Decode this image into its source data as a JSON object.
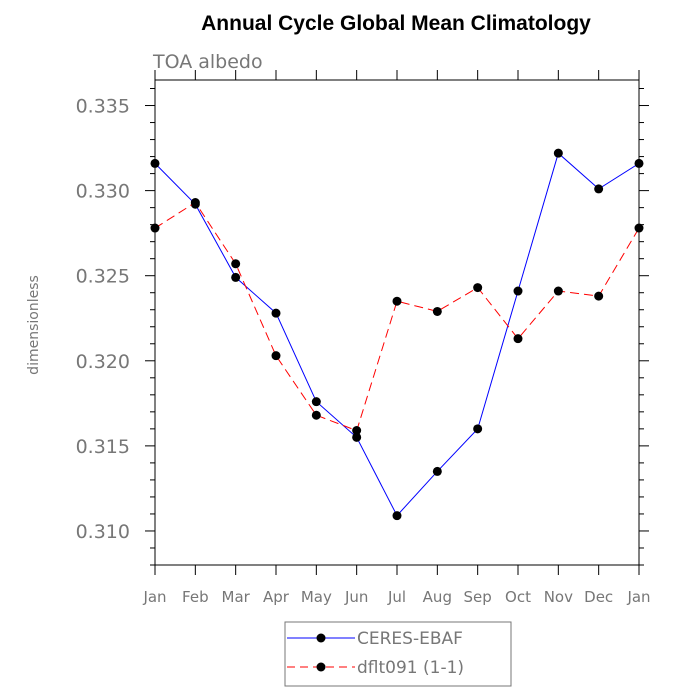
{
  "chart_data": {
    "type": "line",
    "title": "Annual Cycle Global Mean Climatology",
    "subtitle": "TOA albedo",
    "xlabel": "",
    "ylabel": "dimensionless",
    "categories": [
      "Jan",
      "Feb",
      "Mar",
      "Apr",
      "May",
      "Jun",
      "Jul",
      "Aug",
      "Sep",
      "Oct",
      "Nov",
      "Dec",
      "Jan"
    ],
    "ylim": [
      0.308,
      0.3365
    ],
    "yticks": [
      "0.310",
      "0.315",
      "0.320",
      "0.325",
      "0.330",
      "0.335"
    ],
    "series": [
      {
        "name": "CERES-EBAF",
        "color": "#0000ff",
        "dash": "solid",
        "values": [
          0.3316,
          0.3292,
          0.3249,
          0.3228,
          0.3176,
          0.3155,
          0.3109,
          0.3135,
          0.316,
          0.3241,
          0.3322,
          0.3301,
          0.3316
        ]
      },
      {
        "name": "dflt091 (1-1)",
        "color": "#ff0000",
        "dash": "dashed",
        "values": [
          0.3278,
          0.3293,
          0.3257,
          0.3203,
          0.3168,
          0.3159,
          0.3235,
          0.3229,
          0.3243,
          0.3213,
          0.3241,
          0.3238,
          0.3278
        ]
      }
    ],
    "legend_position": "bottom-center",
    "marker": "filled-circle",
    "marker_color": "#000000"
  }
}
